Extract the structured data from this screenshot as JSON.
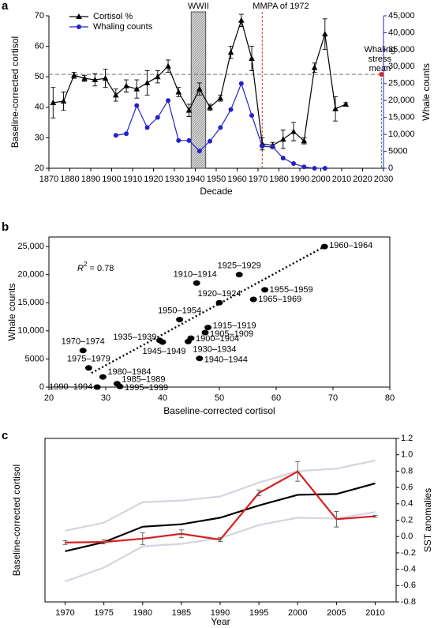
{
  "chart_data": [
    {
      "type": "line",
      "panel": "a",
      "xlabel": "Decade",
      "ylabel": "Baseline-corrected cortisol",
      "y2label": "Whale counts",
      "y2color": "#2323c8",
      "xlim": [
        1870,
        2030
      ],
      "xticks": [
        1870,
        1880,
        1890,
        1900,
        1910,
        1920,
        1930,
        1940,
        1950,
        1960,
        1970,
        1980,
        1990,
        2000,
        2010,
        2020,
        2030
      ],
      "ylim": [
        20,
        70
      ],
      "yticks": [
        20,
        30,
        40,
        50,
        60,
        70
      ],
      "y2lim": [
        0,
        45000
      ],
      "y2ticks": [
        0,
        5000,
        {
          "value": 10000,
          "label": "10,000"
        },
        {
          "value": 15000,
          "label": "15,000"
        },
        {
          "value": 20000,
          "label": "20,000"
        },
        {
          "value": 25000,
          "label": "25,000"
        },
        {
          "value": 30000,
          "label": "30,000"
        },
        {
          "value": 35000,
          "label": "35,000"
        },
        {
          "value": 40000,
          "label": "40,000"
        },
        {
          "value": 45000,
          "label": "45,000"
        }
      ],
      "legend": "upper left",
      "series": [
        {
          "name": "Cortisol %",
          "color": "#000000",
          "marker": "triangle",
          "x": [
            1872,
            1877,
            1882,
            1887,
            1892,
            1897,
            1902,
            1907,
            1912,
            1917,
            1922,
            1927,
            1932,
            1937,
            1942,
            1947,
            1952,
            1957,
            1962,
            1967,
            1972,
            1977,
            1982,
            1987,
            1992,
            1997,
            2002,
            2007,
            2012
          ],
          "values": [
            41.5,
            42,
            50.5,
            49.5,
            49,
            49.5,
            44,
            47,
            46,
            48,
            50,
            53.5,
            45,
            39,
            46,
            40,
            43,
            58,
            68.5,
            56,
            28,
            27.5,
            29.5,
            32,
            29,
            53,
            64,
            39.5,
            41
          ],
          "errors": [
            5,
            3,
            1,
            1,
            2,
            3,
            2,
            2,
            3,
            4,
            2,
            2,
            1.5,
            2,
            2,
            1,
            1,
            2,
            2,
            4,
            2,
            1,
            3,
            3,
            1,
            1.5,
            5,
            4,
            0.5
          ]
        },
        {
          "name": "Whaling counts",
          "color": "#2323c8",
          "marker": "circle",
          "axis": "y2",
          "x": [
            1902,
            1907,
            1912,
            1917,
            1922,
            1927,
            1932,
            1937,
            1942,
            1947,
            1952,
            1957,
            1962,
            1967,
            1972,
            1977,
            1982,
            1987,
            1992,
            1997,
            2002
          ],
          "values": [
            9700,
            10200,
            18500,
            12000,
            15000,
            20000,
            8200,
            8200,
            5100,
            8000,
            12000,
            17300,
            25000,
            15600,
            6500,
            6300,
            3000,
            1400,
            400,
            0,
            0
          ]
        }
      ],
      "wwii": {
        "label": "WWII",
        "x0": 1938,
        "x1": 1945
      },
      "mmpa": {
        "label": "MMPA of 1972",
        "x": 1972
      },
      "stress_mean": {
        "label": [
          "Whaling",
          "stress",
          "mean"
        ],
        "y": 50.8,
        "x": 2029
      }
    },
    {
      "type": "scatter",
      "panel": "b",
      "xlabel": "Baseline-corrected cortisol",
      "ylabel": "Whale counts",
      "box": true,
      "xlim": [
        20,
        80
      ],
      "xticks": [
        20,
        30,
        40,
        50,
        60,
        70,
        80
      ],
      "ylim": [
        0,
        26700
      ],
      "yticks": [
        0,
        5000,
        {
          "value": 10000,
          "label": "10,000"
        },
        {
          "value": 15000,
          "label": "15,000"
        },
        {
          "value": 20000,
          "label": "20,000"
        },
        {
          "value": 25000,
          "label": "25,000"
        }
      ],
      "color": "#000000",
      "labels": [
        "1960–1964",
        "1925–1929",
        "1910–1914",
        "1955–1959",
        "1920–1924",
        "1965–1969",
        "1950–1954",
        "1915–1919",
        "1905–1909",
        "1935–1939",
        "1900–1904",
        "1945–1949",
        "1930–1934",
        "1940–1944",
        "1970–1974",
        "1975–1979",
        "1980–1984",
        "1985–1989",
        "1990–1994",
        "1995–1999"
      ],
      "x": [
        68.5,
        53.5,
        46,
        58,
        50,
        56,
        43,
        48,
        47.5,
        39.5,
        45,
        40,
        44.5,
        46.5,
        26,
        27,
        29.5,
        32,
        28.5,
        32.5
      ],
      "values": [
        25000,
        20000,
        18500,
        17300,
        15000,
        15600,
        12000,
        10600,
        9700,
        8300,
        8700,
        8000,
        8100,
        5100,
        6500,
        3400,
        1800,
        600,
        0,
        100
      ],
      "trendline": {
        "x": [
          27.5,
          68.5
        ],
        "values": [
          2500,
          25000
        ]
      },
      "r_squared": {
        "symbol": "R",
        "superscript": "2",
        "text": " = 0.78"
      }
    },
    {
      "type": "line",
      "panel": "c",
      "xlabel": "Year",
      "ylabel": "Baseline-corrected cortisol",
      "ycolor": "#d62020",
      "y2label": "SST anomalies",
      "box": true,
      "xlim": [
        1967.4,
        2012.7
      ],
      "xticks": [
        1970,
        1975,
        1980,
        1985,
        1990,
        1995,
        2000,
        2005,
        2010
      ],
      "ylim": [
        -3,
        81
      ],
      "y2lim": [
        -0.8,
        1.2
      ],
      "y2ticks": [
        -0.8,
        -0.6,
        -0.4,
        -0.2,
        {
          "value": 0,
          "label": "0.0"
        },
        0.2,
        0.4,
        0.6,
        0.8,
        {
          "value": 1,
          "label": "1.0"
        },
        1.2
      ],
      "x": [
        1970,
        1975,
        1980,
        1985,
        1990,
        1995,
        2000,
        2005,
        2010
      ],
      "series": [
        {
          "color": "#d5d5de",
          "axis": "y2",
          "values": [
            0.07,
            0.17,
            0.42,
            0.44,
            0.49,
            0.66,
            0.8,
            0.83,
            0.93
          ]
        },
        {
          "color": "#d5d5de",
          "axis": "y2",
          "values": [
            -0.55,
            -0.38,
            -0.12,
            -0.09,
            -0.02,
            0.14,
            0.23,
            0.22,
            0.3
          ]
        },
        {
          "color": "#000000",
          "axis": "y2",
          "values": [
            -0.18,
            -0.07,
            0.12,
            0.15,
            0.23,
            0.38,
            0.51,
            0.52,
            0.65
          ]
        },
        {
          "color": "#d62020",
          "error_color": "#555555",
          "values": [
            27.5,
            27.8,
            29.5,
            32,
            29,
            53,
            64,
            39.5,
            41
          ],
          "errors": [
            1,
            1,
            3,
            2,
            1,
            1.5,
            5,
            4,
            0.5
          ]
        }
      ]
    }
  ]
}
